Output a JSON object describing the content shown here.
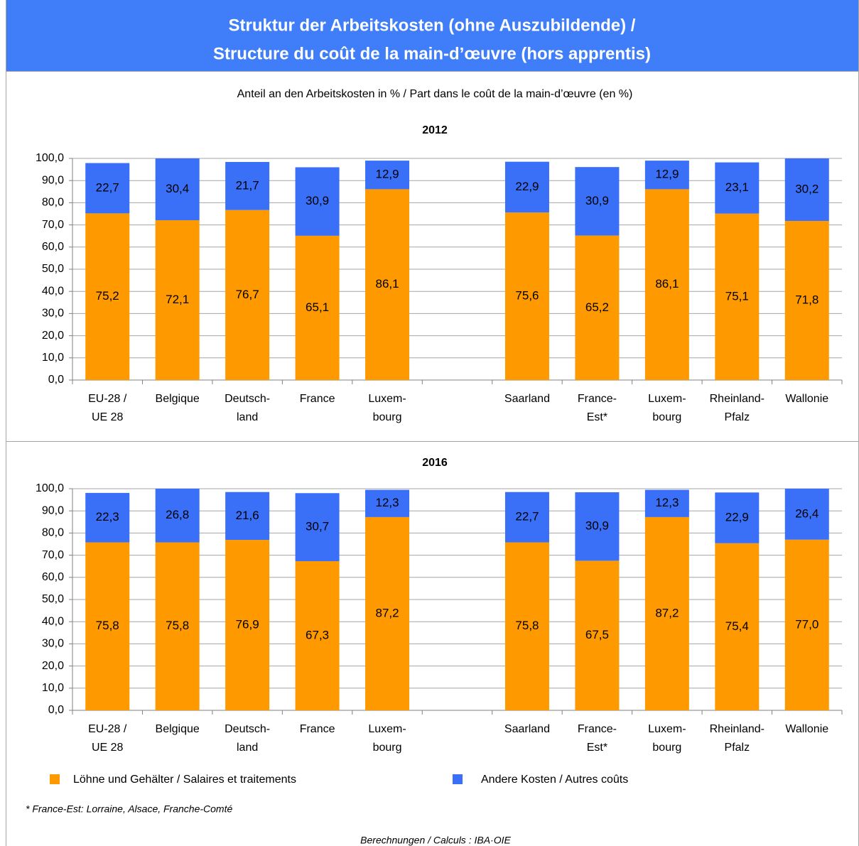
{
  "header": {
    "title": [
      "Struktur der Arbeitskosten (ohne Auszubildende) /",
      "Structure du coût de la main-d’œuvre (hors apprentis)"
    ]
  },
  "subtitle": "Anteil an den Arbeitskosten in % / Part dans le coût de la main-d’œuvre (en %)",
  "footnote": "* France-Est: Lorraine, Alsace, Franche-Comté",
  "source": "Berechnungen / Calculs : IBA·OIE",
  "chart_data": [
    {
      "type": "stacked_bar",
      "title": "2012",
      "categories": [
        [
          "EU-28 /",
          "UE 28"
        ],
        [
          "Belgique"
        ],
        [
          "Deutsch-",
          "land"
        ],
        [
          "France"
        ],
        [
          "Luxem-",
          "bourg"
        ],
        null,
        [
          "Saarland"
        ],
        [
          "France-",
          "Est*"
        ],
        [
          "Luxem-",
          "bourg"
        ],
        [
          "Rheinland-",
          "Pfalz"
        ],
        [
          "Wallonie"
        ]
      ],
      "series": [
        {
          "name": "Löhne und Gehälter / Salaires et traitements",
          "color": "#ff9900",
          "values": [
            75.2,
            72.1,
            76.7,
            65.1,
            86.1,
            null,
            75.6,
            65.2,
            86.1,
            75.1,
            71.8
          ],
          "value_labels": [
            "75,2",
            "72,1",
            "76,7",
            "65,1",
            "86,1",
            null,
            "75,6",
            "65,2",
            "86,1",
            "75,1",
            "71,8"
          ]
        },
        {
          "name": "Andere Kosten / Autres coûts",
          "color": "#3a6ff7",
          "values": [
            22.7,
            30.4,
            21.7,
            30.9,
            12.9,
            null,
            22.9,
            30.9,
            12.9,
            23.1,
            30.2
          ],
          "value_labels": [
            "22,7",
            "30,4",
            "21,7",
            "30,9",
            "12,9",
            null,
            "22,9",
            "30,9",
            "12,9",
            "23,1",
            "30,2"
          ]
        }
      ],
      "ylim": [
        0,
        100
      ],
      "yticks": [
        {
          "value": 0,
          "label": "0,0"
        },
        {
          "value": 10,
          "label": "10,0"
        },
        {
          "value": 20,
          "label": "20,0"
        },
        {
          "value": 30,
          "label": "30,0"
        },
        {
          "value": 40,
          "label": "40,0"
        },
        {
          "value": 50,
          "label": "50,0"
        },
        {
          "value": 60,
          "label": "60,0"
        },
        {
          "value": 70,
          "label": "70,0"
        },
        {
          "value": 80,
          "label": "80,0"
        },
        {
          "value": 90,
          "label": "90,0"
        },
        {
          "value": 100,
          "label": "100,0"
        }
      ],
      "grid": true
    },
    {
      "type": "stacked_bar",
      "title": "2016",
      "categories": [
        [
          "EU-28 /",
          "UE 28"
        ],
        [
          "Belgique"
        ],
        [
          "Deutsch-",
          "land"
        ],
        [
          "France"
        ],
        [
          "Luxem-",
          "bourg"
        ],
        null,
        [
          "Saarland"
        ],
        [
          "France-",
          "Est*"
        ],
        [
          "Luxem-",
          "bourg"
        ],
        [
          "Rheinland-",
          "Pfalz"
        ],
        [
          "Wallonie"
        ]
      ],
      "series": [
        {
          "name": "Löhne und Gehälter / Salaires et traitements",
          "color": "#ff9900",
          "values": [
            75.8,
            75.8,
            76.9,
            67.3,
            87.2,
            null,
            75.8,
            67.5,
            87.2,
            75.4,
            77.0
          ],
          "value_labels": [
            "75,8",
            "75,8",
            "76,9",
            "67,3",
            "87,2",
            null,
            "75,8",
            "67,5",
            "87,2",
            "75,4",
            "77,0"
          ]
        },
        {
          "name": "Andere Kosten / Autres coûts",
          "color": "#3a6ff7",
          "values": [
            22.3,
            26.8,
            21.6,
            30.7,
            12.3,
            null,
            22.7,
            30.9,
            12.3,
            22.9,
            26.4
          ],
          "value_labels": [
            "22,3",
            "26,8",
            "21,6",
            "30,7",
            "12,3",
            null,
            "22,7",
            "30,9",
            "12,3",
            "22,9",
            "26,4"
          ]
        }
      ],
      "ylim": [
        0,
        100
      ],
      "yticks": [
        {
          "value": 0,
          "label": "0,0"
        },
        {
          "value": 10,
          "label": "10,0"
        },
        {
          "value": 20,
          "label": "20,0"
        },
        {
          "value": 30,
          "label": "30,0"
        },
        {
          "value": 40,
          "label": "40,0"
        },
        {
          "value": 50,
          "label": "50,0"
        },
        {
          "value": 60,
          "label": "60,0"
        },
        {
          "value": 70,
          "label": "70,0"
        },
        {
          "value": 80,
          "label": "80,0"
        },
        {
          "value": 90,
          "label": "90,0"
        },
        {
          "value": 100,
          "label": "100,0"
        }
      ],
      "grid": true,
      "legend": "bottom"
    }
  ]
}
